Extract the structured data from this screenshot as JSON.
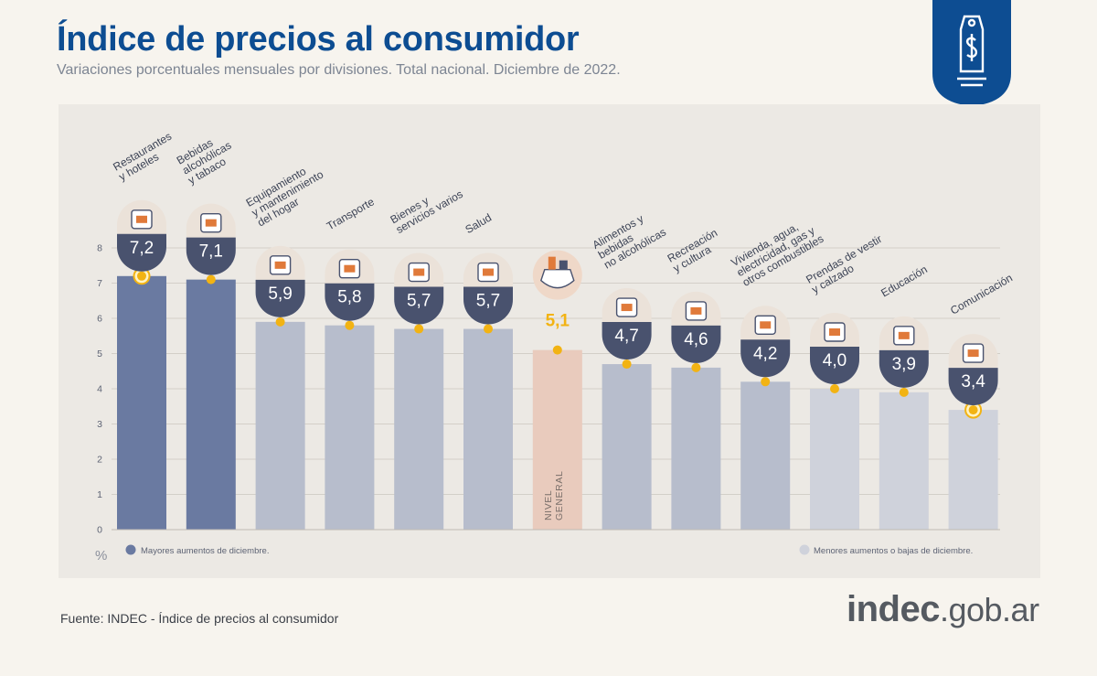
{
  "header": {
    "title": "Índice de precios al consumidor",
    "subtitle": "Variaciones porcentuales mensuales por divisiones. Total nacional. Diciembre de 2022."
  },
  "footer": {
    "source": "Fuente: INDEC - Índice de precios al consumidor",
    "brand_main": "indec",
    "brand_suffix": ".gob.ar"
  },
  "colors": {
    "title": "#0d4d92",
    "highest": "#6a7aa1",
    "mid": "#b7bdcc",
    "lowest": "#cfd2db",
    "general": "#e9cbbd",
    "marker": "#f2b313",
    "bubble": "#49526e",
    "accent_orange": "#e07a3a"
  },
  "chart_data": {
    "type": "bar",
    "ylabel": "%",
    "ylim": [
      0,
      8
    ],
    "yticks": [
      "0",
      "1",
      "2",
      "3",
      "4",
      "5",
      "6",
      "7",
      "8"
    ],
    "grid": true,
    "categories": [
      "Restaurantes y hoteles",
      "Bebidas alcohólicas y tabaco",
      "Equipamiento y mantenimiento del hogar",
      "Transporte",
      "Bienes y servicios varios",
      "Salud",
      "Nivel general",
      "Alimentos y bebidas no alcohólicas",
      "Recreación y cultura",
      "Vivienda, agua, electricidad, gas y otros combustibles",
      "Prendas de vestir y calzado",
      "Educación",
      "Comunicación"
    ],
    "values": [
      7.2,
      7.1,
      5.9,
      5.8,
      5.7,
      5.7,
      5.1,
      4.7,
      4.6,
      4.2,
      4.0,
      3.9,
      3.4
    ],
    "value_labels": [
      "7,2",
      "7,1",
      "5,9",
      "5,8",
      "5,7",
      "5,7",
      "5,1",
      "4,7",
      "4,6",
      "4,2",
      "4,0",
      "3,9",
      "3,4"
    ],
    "label_lines": [
      [
        "Restaurantes",
        "y hoteles"
      ],
      [
        "Bebidas",
        "alcohólicas",
        "y tabaco"
      ],
      [
        "Equipamiento",
        "y mantenimiento",
        "del hogar"
      ],
      [
        "Transporte"
      ],
      [
        "Bienes y",
        "servicios varios"
      ],
      [
        "Salud"
      ],
      [
        "NIVEL",
        "GENERAL"
      ],
      [
        "Alimentos y",
        "bebidas",
        "no alcohólicas"
      ],
      [
        "Recreación",
        "y cultura"
      ],
      [
        "Vivienda, agua,",
        "electricidad, gas y",
        "otros combustibles"
      ],
      [
        "Prendas de vestir",
        "y calzado"
      ],
      [
        "Educación"
      ],
      [
        "Comunicación"
      ]
    ],
    "icons": [
      "cutlery-plate-icon",
      "wine-bottle-icon",
      "washing-machine-icon",
      "bus-card-icon",
      "comb-scissors-icon",
      "first-aid-icon",
      "shopping-bag-icon",
      "food-icon",
      "umbrella-sun-icon",
      "bulb-key-icon",
      "tshirt-icon",
      "notebook-icon",
      "smartphone-icon"
    ],
    "legend": {
      "highest": "Mayores aumentos de diciembre.",
      "lowest": "Menores aumentos o bajas de diciembre."
    },
    "legend_placement": "bottom"
  }
}
